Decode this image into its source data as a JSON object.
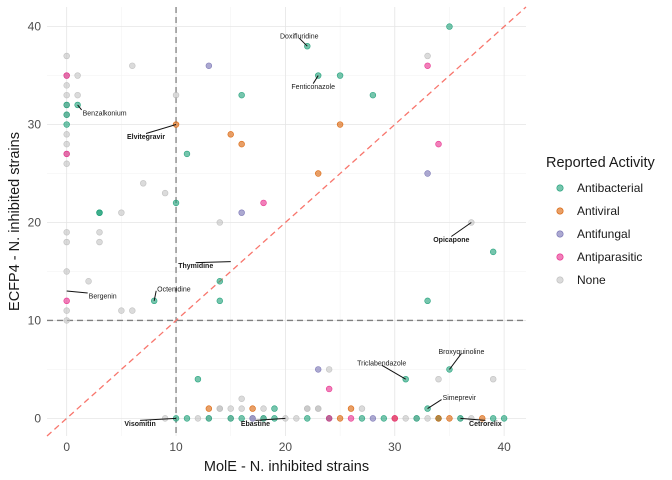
{
  "chart_data": {
    "type": "scatter",
    "xlabel": "MolE - N. inhibited strains",
    "ylabel": "ECFP4 - N. inhibited strains",
    "xlim": [
      -1.8,
      42
    ],
    "ylim": [
      -1.8,
      42
    ],
    "x_ticks": [
      0,
      10,
      20,
      30,
      40
    ],
    "y_ticks": [
      0,
      10,
      20,
      30,
      40
    ],
    "grid": true,
    "reference_lines": {
      "vertical": 10,
      "horizontal": 10,
      "diagonal": "y = x"
    },
    "legend": {
      "title": "Reported Activity",
      "placement": "right",
      "entries": [
        "Antibacterial",
        "Antiviral",
        "Antifungal",
        "Antiparasitic",
        "None"
      ]
    },
    "colors": {
      "Antibacterial": "#1b9e77",
      "Antiviral": "#d95f02",
      "Antifungal": "#7570b3",
      "Antiparasitic": "#e7298a",
      "None": "#bdbdbd",
      "threshold_line": "#7f7f7f",
      "diagonal_line": "#f8766d"
    },
    "series": [
      {
        "name": "Antibacterial",
        "x": [
          0,
          0,
          0,
          1,
          3,
          3,
          8,
          10,
          10,
          11,
          12,
          14,
          14,
          16,
          18,
          19,
          22,
          23,
          25,
          28,
          31,
          33,
          33,
          35,
          35,
          39,
          11,
          13,
          15,
          16,
          19,
          22,
          24,
          27,
          29,
          32,
          34,
          36,
          39,
          40
        ],
        "y": [
          32,
          31,
          30,
          32,
          21,
          21,
          12,
          22,
          0,
          27,
          4,
          14,
          12,
          33,
          0,
          1,
          38,
          35,
          35,
          33,
          4,
          12,
          1,
          5,
          40,
          17,
          0,
          0,
          0,
          0,
          0,
          0,
          0,
          0,
          0,
          0,
          0,
          0,
          0,
          0
        ]
      },
      {
        "name": "Antiviral",
        "x": [
          10,
          15,
          16,
          23,
          25,
          13,
          17,
          26,
          25,
          30,
          34,
          35,
          38
        ],
        "y": [
          30,
          29,
          28,
          25,
          30,
          1,
          1,
          1,
          0,
          0,
          0,
          0,
          0
        ]
      },
      {
        "name": "Antifungal",
        "x": [
          13,
          16,
          23,
          33,
          17,
          28
        ],
        "y": [
          36,
          21,
          5,
          25,
          0,
          0
        ]
      },
      {
        "name": "Antiparasitic",
        "x": [
          0,
          0,
          0,
          18,
          24,
          33,
          34,
          24,
          26,
          30
        ],
        "y": [
          35,
          27,
          12,
          22,
          3,
          36,
          28,
          0,
          0,
          0
        ]
      },
      {
        "name": "None",
        "x": [
          0,
          0,
          0,
          0,
          0,
          0,
          0,
          0,
          0,
          0,
          0,
          0,
          0,
          0,
          0,
          1,
          1,
          2,
          3,
          3,
          5,
          5,
          6,
          6,
          7,
          9,
          10,
          14,
          14,
          15,
          18,
          22,
          23,
          24,
          33,
          36,
          37,
          39,
          12,
          14,
          16,
          16,
          18,
          20,
          21,
          22,
          23,
          27,
          31,
          32,
          33,
          34,
          37,
          9,
          13,
          15,
          17
        ],
        "y": [
          37,
          35,
          34,
          33,
          32,
          31,
          29,
          28,
          27,
          26,
          19,
          18,
          15,
          11,
          10,
          35,
          33,
          14,
          19,
          18,
          21,
          11,
          36,
          11,
          24,
          23,
          33,
          20,
          1,
          1,
          1,
          1,
          1,
          5,
          37,
          0,
          20,
          4,
          0,
          1,
          1,
          2,
          0,
          0,
          0,
          1,
          1,
          1,
          0,
          0,
          0,
          4,
          0,
          0,
          0,
          0,
          0
        ]
      }
    ],
    "annotations": [
      {
        "label": "Doxifluridine",
        "x": 22,
        "y": 38,
        "bold": false
      },
      {
        "label": "Fenticonazole",
        "x": 23,
        "y": 35,
        "bold": false
      },
      {
        "label": "Benzalkonium",
        "x": 1,
        "y": 32,
        "bold": false
      },
      {
        "label": "Elvitegravir",
        "x": 10,
        "y": 30,
        "bold": true
      },
      {
        "label": "Opicapone",
        "x": 37,
        "y": 20,
        "bold": true
      },
      {
        "label": "Thymidine",
        "x": 15,
        "y": 16,
        "bold": true
      },
      {
        "label": "Octenidine",
        "x": 8,
        "y": 12,
        "bold": false
      },
      {
        "label": "Bergenin",
        "x": 0,
        "y": 13,
        "bold": false
      },
      {
        "label": "Triclabendazole",
        "x": 31,
        "y": 4,
        "bold": false
      },
      {
        "label": "Broxyquinoline",
        "x": 35,
        "y": 5,
        "bold": false
      },
      {
        "label": "Simeprevir",
        "x": 33,
        "y": 1,
        "bold": false
      },
      {
        "label": "Visomitin",
        "x": 10,
        "y": 0,
        "bold": true
      },
      {
        "label": "Ebastine",
        "x": 20,
        "y": 0,
        "bold": true
      },
      {
        "label": "Cetrorelix",
        "x": 36,
        "y": 0,
        "bold": true
      }
    ]
  }
}
